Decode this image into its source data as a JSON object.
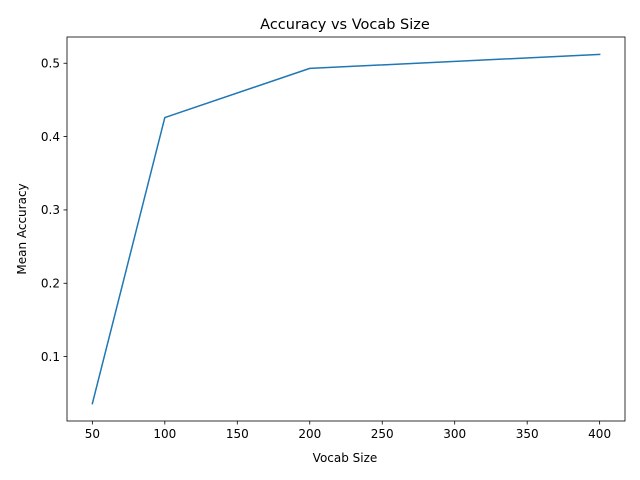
{
  "chart_data": {
    "type": "line",
    "title": "Accuracy vs Vocab Size",
    "xlabel": "Vocab Size",
    "ylabel": "Mean Accuracy",
    "x": [
      50,
      100,
      200,
      400
    ],
    "series": [
      {
        "values": [
          0.036,
          0.426,
          0.493,
          0.512
        ],
        "color": "#1f77b4"
      }
    ],
    "xticks": [
      50,
      100,
      150,
      200,
      250,
      300,
      350,
      400
    ],
    "yticks": [
      0.1,
      0.2,
      0.3,
      0.4,
      0.5
    ],
    "xlim": [
      32.5,
      417.5
    ],
    "ylim": [
      0.0122,
      0.5358
    ],
    "grid": false,
    "legend": "none"
  }
}
